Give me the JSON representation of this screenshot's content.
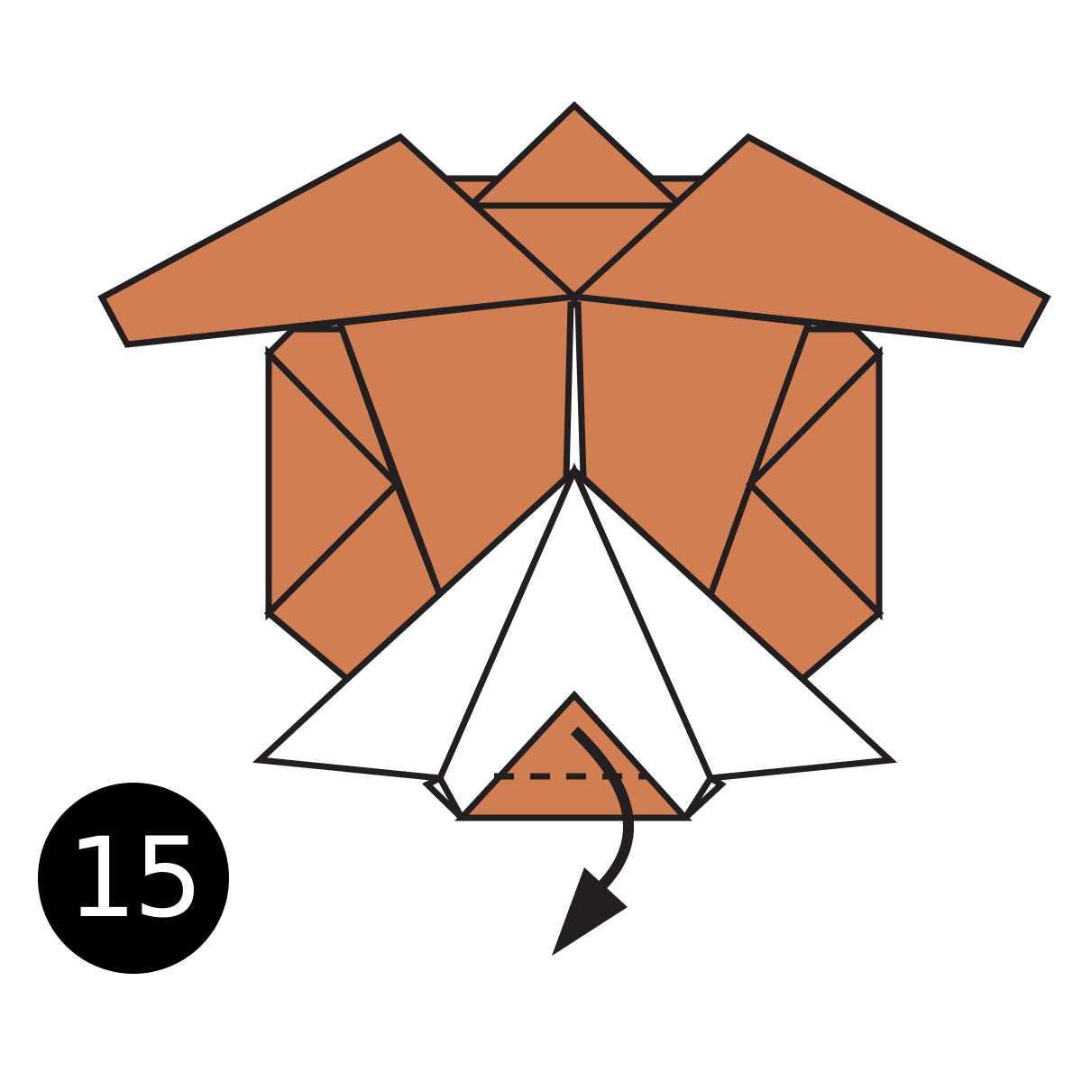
{
  "step": {
    "number": "15",
    "badge_color": "#000000",
    "number_color": "#ffffff"
  },
  "colors": {
    "paper_colored_side": "#D07E52",
    "paper_white_side": "#FFFFFF",
    "outline": "#231F20",
    "arrow": "#231F20"
  },
  "instruction": {
    "fold_line": "valley-fold",
    "arrow_direction": "down"
  }
}
